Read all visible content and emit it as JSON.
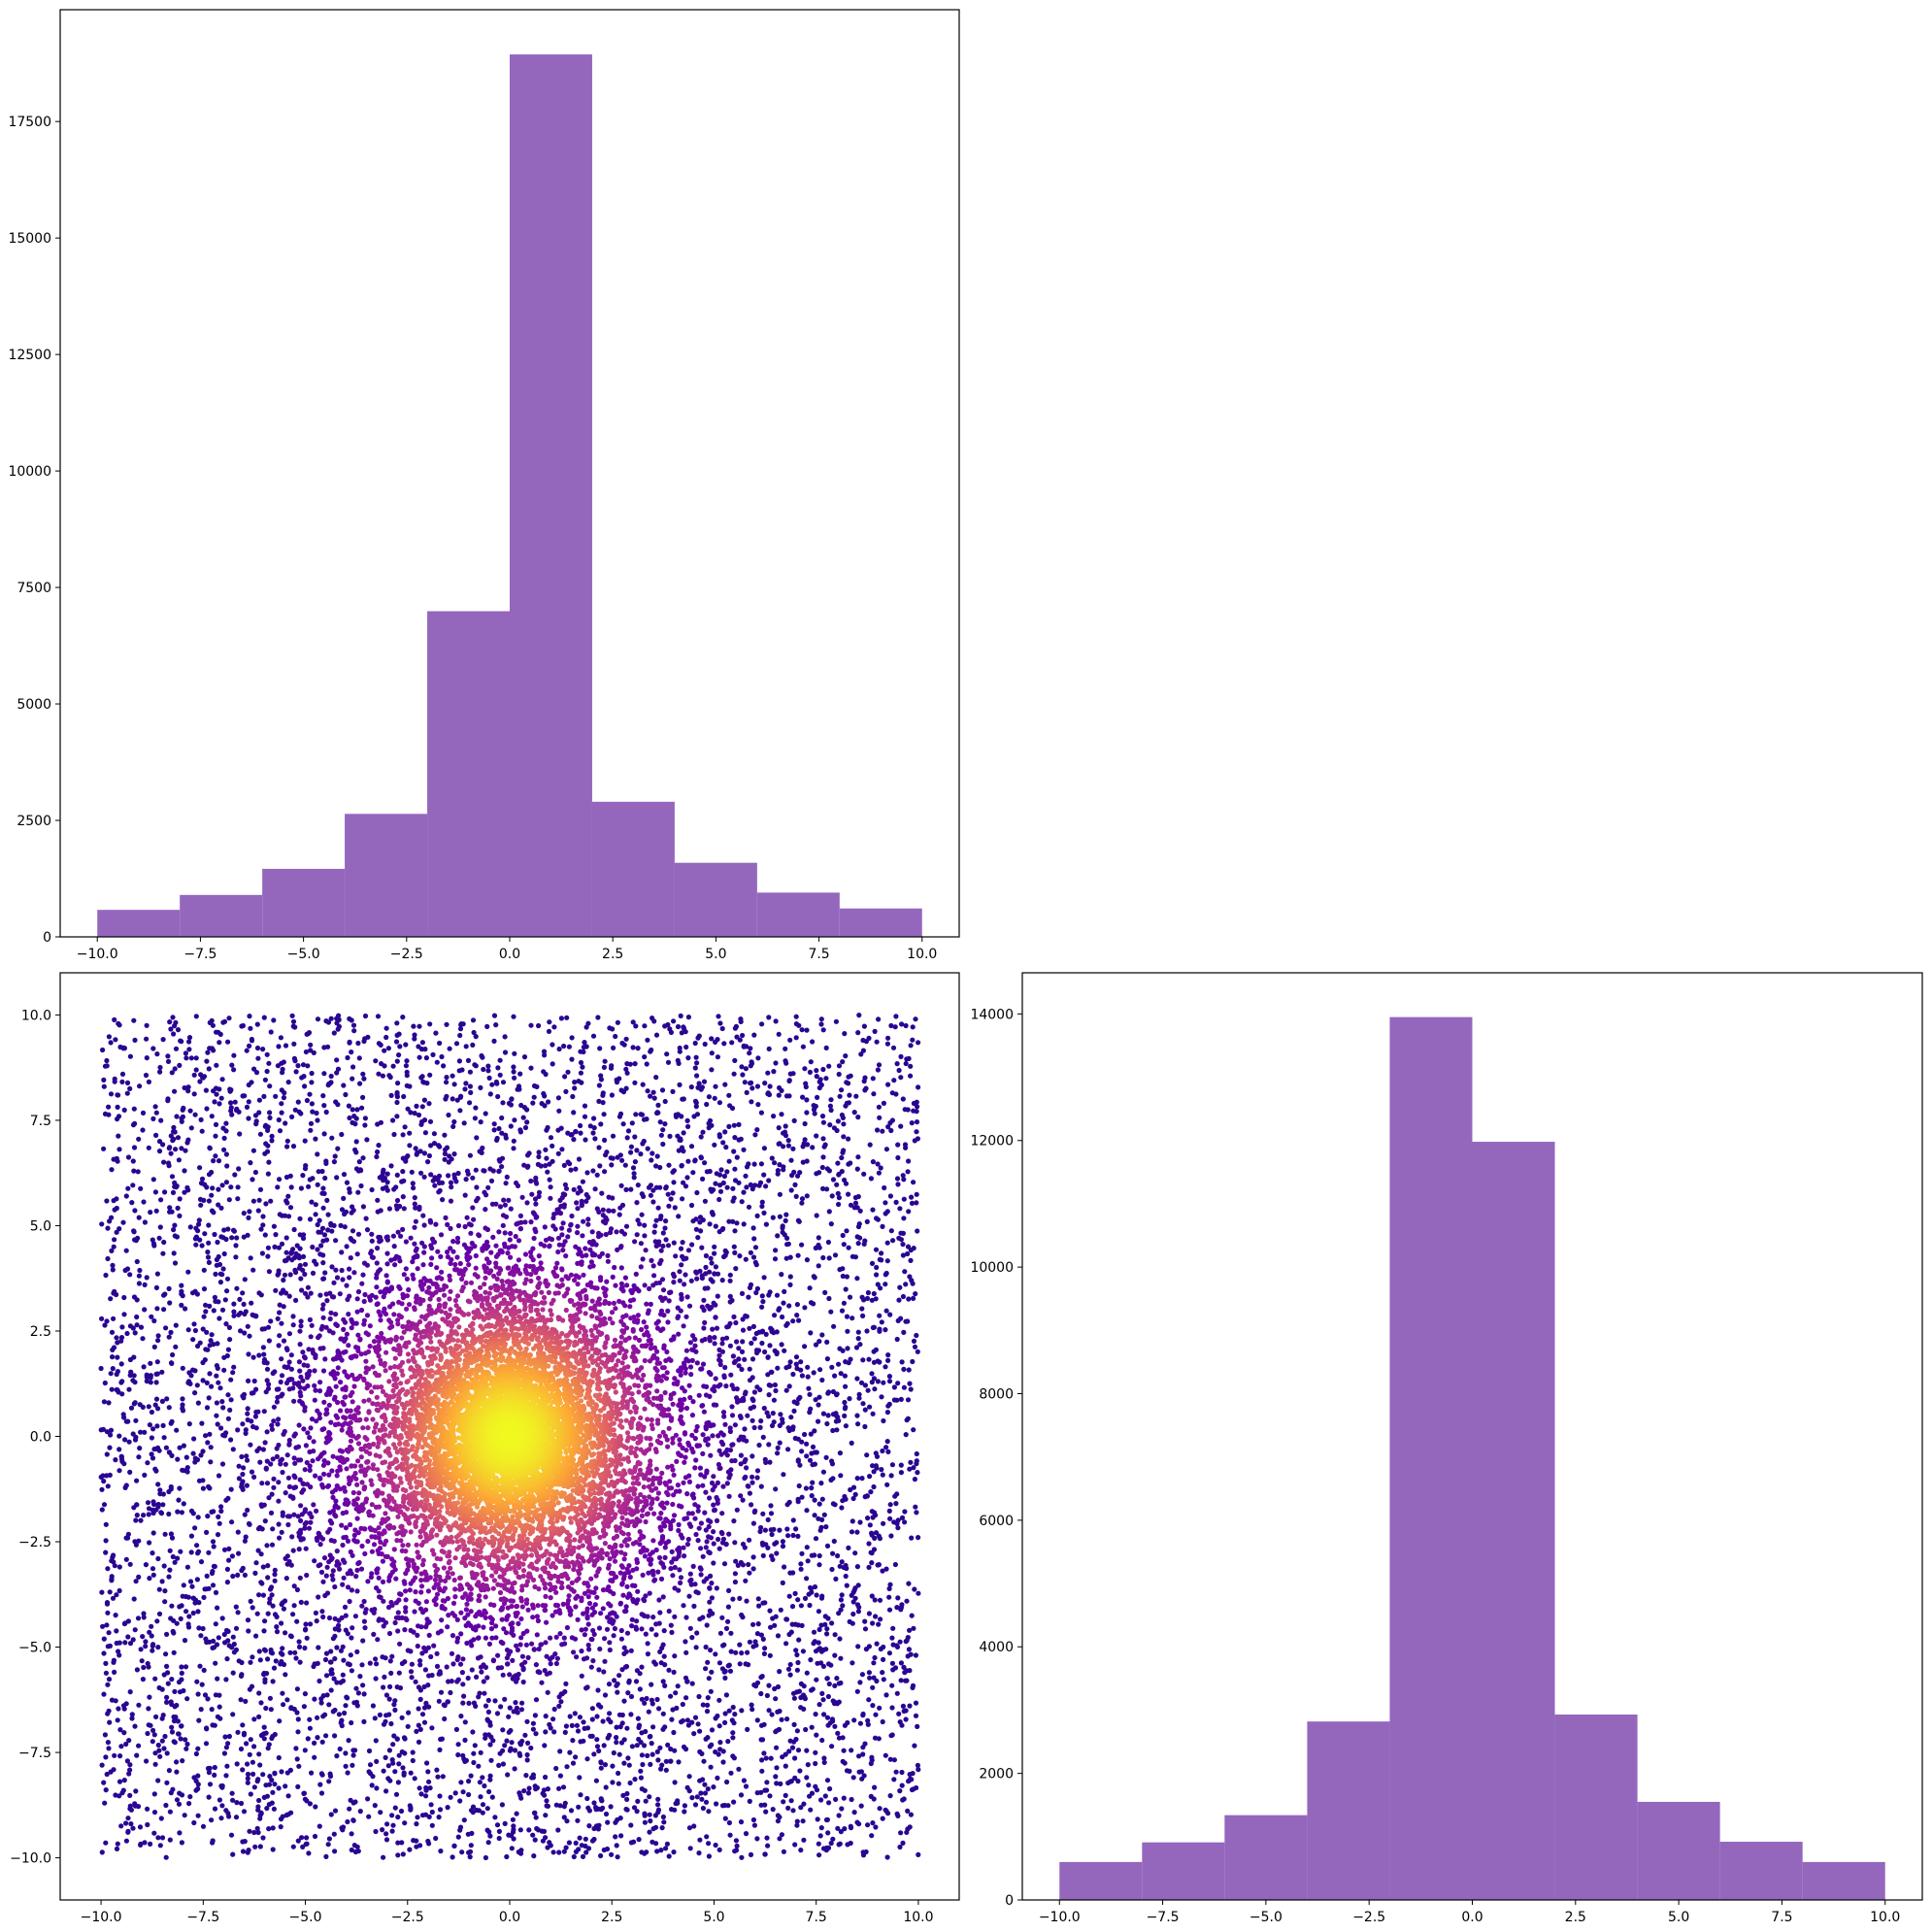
{
  "figure": {
    "background": "#ffffff"
  },
  "chart_data": [
    {
      "type": "bar",
      "panel": "top-left",
      "bar_color": "#9467bd",
      "bin_edges": [
        -10,
        -8,
        -6,
        -4,
        -2,
        0,
        2,
        4,
        6,
        8,
        10
      ],
      "values": [
        580,
        900,
        1460,
        2640,
        6990,
        18940,
        2900,
        1590,
        950,
        610
      ],
      "xlim": [
        -10.9,
        10.9
      ],
      "ylim": [
        0,
        19900
      ],
      "xticks": [
        -10,
        -7.5,
        -5,
        -2.5,
        0,
        2.5,
        5,
        7.5,
        10
      ],
      "xtick_labels": [
        "−10.0",
        "−7.5",
        "−5.0",
        "−2.5",
        "0.0",
        "2.5",
        "5.0",
        "7.5",
        "10.0"
      ],
      "yticks": [
        0,
        2500,
        5000,
        7500,
        10000,
        12500,
        15000,
        17500
      ],
      "ytick_labels": [
        "0",
        "2500",
        "5000",
        "7500",
        "10000",
        "12500",
        "15000",
        "17500"
      ],
      "title": "",
      "xlabel": "",
      "ylabel": ""
    },
    {
      "type": "scatter",
      "panel": "bottom-left",
      "description_of_data": "uniform random points in [-10,10]x[-10,10] plus a dense cluster centred at (0,0); colour encodes local density (plasma colormap)",
      "colormap": [
        "#0d0887",
        "#6a00a8",
        "#b12a90",
        "#e16462",
        "#fca636",
        "#f0f921"
      ],
      "n_points_uniform": 6500,
      "n_points_cluster": 9000,
      "cluster_center": [
        0,
        0
      ],
      "x_range": [
        -10,
        10
      ],
      "y_range": [
        -10,
        10
      ],
      "xlim": [
        -11,
        11
      ],
      "ylim": [
        -11,
        11
      ],
      "xticks": [
        -10,
        -7.5,
        -5,
        -2.5,
        0,
        2.5,
        5,
        7.5,
        10
      ],
      "xtick_labels": [
        "−10.0",
        "−7.5",
        "−5.0",
        "−2.5",
        "0.0",
        "2.5",
        "5.0",
        "7.5",
        "10.0"
      ],
      "yticks": [
        -10,
        -7.5,
        -5,
        -2.5,
        0,
        2.5,
        5,
        7.5,
        10
      ],
      "ytick_labels": [
        "−10.0",
        "−7.5",
        "−5.0",
        "−2.5",
        "0.0",
        "2.5",
        "5.0",
        "7.5",
        "10.0"
      ],
      "title": "",
      "xlabel": "",
      "ylabel": ""
    },
    {
      "type": "bar",
      "panel": "bottom-right",
      "bar_color": "#9467bd",
      "bin_edges": [
        -10,
        -8,
        -6,
        -4,
        -2,
        0,
        2,
        4,
        6,
        8,
        10
      ],
      "values": [
        600,
        910,
        1340,
        2820,
        13950,
        11980,
        2930,
        1550,
        920,
        600
      ],
      "xlim": [
        -10.9,
        10.9
      ],
      "ylim": [
        0,
        14650
      ],
      "xticks": [
        -10,
        -7.5,
        -5,
        -2.5,
        0,
        2.5,
        5,
        7.5,
        10
      ],
      "xtick_labels": [
        "−10.0",
        "−7.5",
        "−5.0",
        "−2.5",
        "0.0",
        "2.5",
        "5.0",
        "7.5",
        "10.0"
      ],
      "yticks": [
        0,
        2000,
        4000,
        6000,
        8000,
        10000,
        12000,
        14000
      ],
      "ytick_labels": [
        "0",
        "2000",
        "4000",
        "6000",
        "8000",
        "10000",
        "12000",
        "14000"
      ],
      "title": "",
      "xlabel": "",
      "ylabel": ""
    }
  ]
}
